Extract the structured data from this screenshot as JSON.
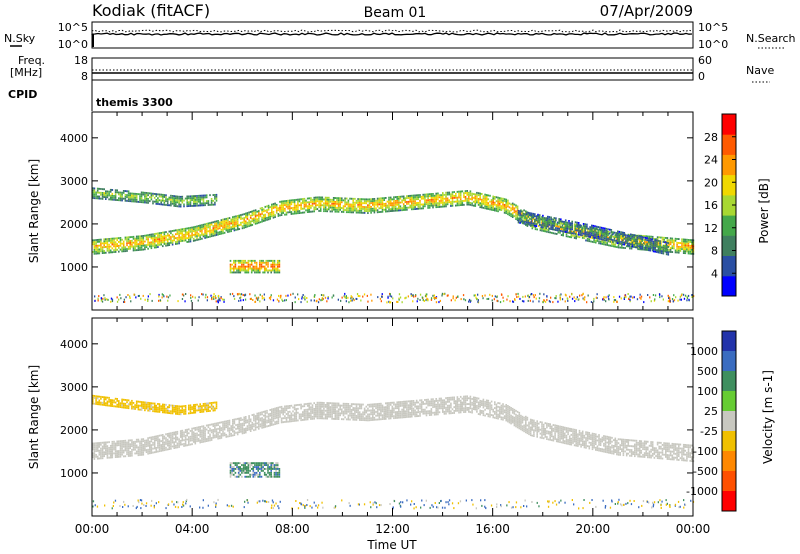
{
  "header": {
    "station": "Kodiak (fitACF)",
    "beam": "Beam 01",
    "date": "07/Apr/2009"
  },
  "strips": {
    "nsky_label": "N.Sky",
    "nsky_ticks": [
      "10^5",
      "10^0"
    ],
    "nsearch_label": "N.Search",
    "nsearch_ticks": [
      "10^5",
      "10^0"
    ],
    "freq_label_1": "Freq.",
    "freq_label_2": "[MHz]",
    "freq_ticks": [
      "18",
      "8"
    ],
    "nave_label": "Nave",
    "nave_ticks": [
      "60",
      "0"
    ],
    "cpid_label": "CPID",
    "cpid_value": "themis 3300"
  },
  "colors": {
    "power_scale": [
      "#0000ff",
      "#2a4fa3",
      "#3f7f5f",
      "#44a84a",
      "#a8d832",
      "#f0d800",
      "#ff9900",
      "#ff5a00",
      "#ff0000"
    ],
    "velocity_scale": [
      "#2233aa",
      "#3a6cc0",
      "#3f8f5f",
      "#66cc33",
      "#c8c8c0",
      "#f0c000",
      "#ff8800",
      "#ff5000",
      "#ff0000"
    ],
    "ground_scatter": "#c8c8c0"
  },
  "chart_data": [
    {
      "type": "heatmap",
      "title": "",
      "quantity": "Power",
      "ylabel": "Slant Range [km]",
      "xlabel": "Time UT",
      "x_ticks": [
        "00:00",
        "04:00",
        "08:00",
        "12:00",
        "16:00",
        "20:00",
        "00:00"
      ],
      "xlim_hours": [
        0,
        24
      ],
      "ylim_km": [
        0,
        4600
      ],
      "y_ticks": [
        1000,
        2000,
        3000,
        4000
      ],
      "colorbar": {
        "label": "Power [dB]",
        "range": [
          0,
          32
        ],
        "ticks": [
          4,
          8,
          12,
          16,
          20,
          24,
          28
        ]
      },
      "bands": [
        {
          "name": "main",
          "points": [
            [
              0,
              1450
            ],
            [
              2,
              1550
            ],
            [
              4,
              1750
            ],
            [
              6,
              2050
            ],
            [
              7.5,
              2350
            ],
            [
              9,
              2450
            ],
            [
              11,
              2400
            ],
            [
              13,
              2500
            ],
            [
              15,
              2600
            ],
            [
              16.5,
              2400
            ],
            [
              17.5,
              2050
            ],
            [
              19,
              1850
            ],
            [
              21,
              1600
            ],
            [
              24,
              1450
            ]
          ],
          "half_width": 170,
          "value": 24
        },
        {
          "name": "upper",
          "points": [
            [
              0,
              2700
            ],
            [
              2,
              2600
            ],
            [
              3.5,
              2500
            ],
            [
              5,
              2550
            ]
          ],
          "half_width": 120,
          "value": 16
        },
        {
          "name": "patch",
          "points": [
            [
              5.5,
              1000
            ],
            [
              7.5,
              1000
            ]
          ],
          "half_width": 150,
          "value": 28
        },
        {
          "name": "late",
          "points": [
            [
              17,
              2150
            ],
            [
              20,
              1800
            ],
            [
              23,
              1400
            ]
          ],
          "half_width": 140,
          "value": 10
        }
      ],
      "noise_floor_km": [
        200,
        400
      ]
    },
    {
      "type": "heatmap",
      "title": "",
      "quantity": "Velocity",
      "ylabel": "Slant Range [km]",
      "xlabel": "Time UT",
      "x_ticks": [
        "00:00",
        "04:00",
        "08:00",
        "12:00",
        "16:00",
        "20:00",
        "00:00"
      ],
      "xlim_hours": [
        0,
        24
      ],
      "ylim_km": [
        0,
        4600
      ],
      "y_ticks": [
        1000,
        2000,
        3000,
        4000
      ],
      "colorbar": {
        "label": "Velocity [m s-1]",
        "tick_labels": [
          "1000",
          "500",
          "100",
          "25",
          "-25",
          "-100",
          "-500",
          "-1000"
        ]
      },
      "bands": [
        {
          "name": "ground-scatter",
          "points": [
            [
              0,
              1500
            ],
            [
              2,
              1600
            ],
            [
              4,
              1850
            ],
            [
              6,
              2100
            ],
            [
              7.5,
              2350
            ],
            [
              9,
              2450
            ],
            [
              11,
              2400
            ],
            [
              13,
              2500
            ],
            [
              15,
              2600
            ],
            [
              16.5,
              2400
            ],
            [
              17.5,
              2050
            ],
            [
              19,
              1850
            ],
            [
              21,
              1600
            ],
            [
              24,
              1450
            ]
          ],
          "half_width": 200,
          "value": 0
        },
        {
          "name": "upper-flow",
          "points": [
            [
              0,
              2700
            ],
            [
              2,
              2550
            ],
            [
              3.5,
              2450
            ],
            [
              5,
              2550
            ]
          ],
          "half_width": 110,
          "value": -150
        },
        {
          "name": "green-patch",
          "points": [
            [
              5.5,
              1050
            ],
            [
              7.5,
              1050
            ]
          ],
          "half_width": 160,
          "value": 60
        }
      ]
    }
  ],
  "x_axis_title": "Time UT"
}
